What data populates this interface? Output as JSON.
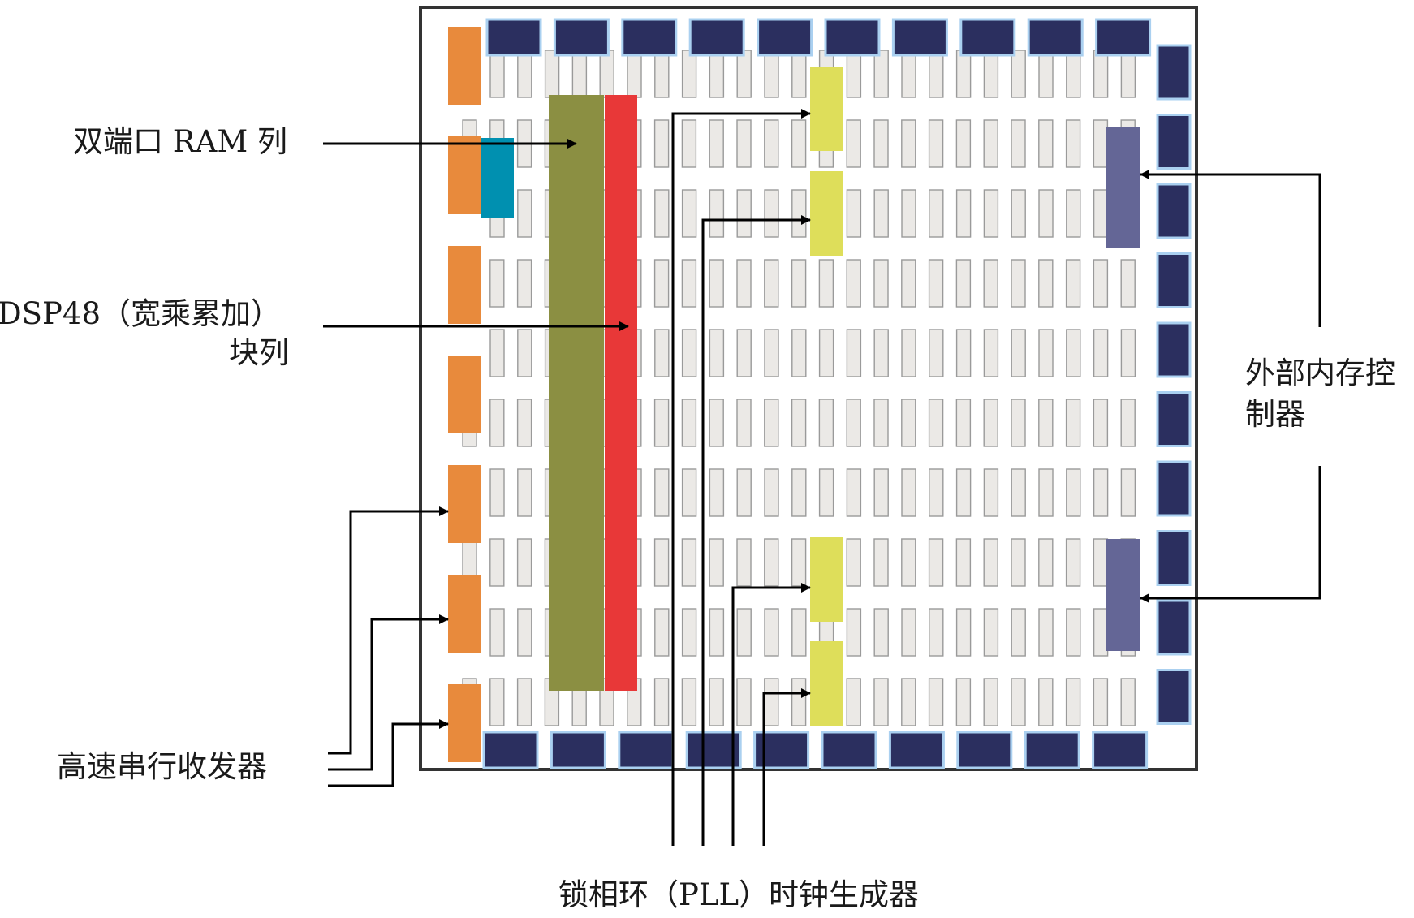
{
  "labels": {
    "dual_port_ram": "双端口 RAM 列",
    "dsp48_line1": "DSP48（宽乘累加）",
    "dsp48_line2": "块列",
    "transceivers": "高速串行收发器",
    "pll": "锁相环（PLL）时钟生成器",
    "mem_ctrl_line1": "外部内存控",
    "mem_ctrl_line2": "制器"
  },
  "colors": {
    "io_pad": "#2b2f5f",
    "logic_cell": "#ebe9e6",
    "bram": "#8b8f42",
    "dsp": "#e83838",
    "transceiver": "#e88a3c",
    "misc_block": "#0090b0",
    "pll": "#dede5a",
    "mem_ctrl": "#646696",
    "pad_glow": "#aad0f0",
    "outline": "#333333"
  }
}
